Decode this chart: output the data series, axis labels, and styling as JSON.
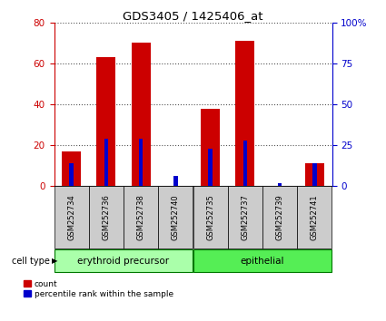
{
  "title": "GDS3405 / 1425406_at",
  "samples": [
    "GSM252734",
    "GSM252736",
    "GSM252738",
    "GSM252740",
    "GSM252735",
    "GSM252737",
    "GSM252739",
    "GSM252741"
  ],
  "count_values": [
    17,
    63,
    70,
    0,
    38,
    71,
    0,
    11
  ],
  "percentile_values": [
    14,
    29,
    29,
    6,
    23,
    28,
    2,
    14
  ],
  "group1_label": "erythroid precursor",
  "group2_label": "epithelial",
  "group1_indices": [
    0,
    1,
    2,
    3
  ],
  "group2_indices": [
    4,
    5,
    6,
    7
  ],
  "group_label_prefix": "cell type",
  "left_axis_color": "#cc0000",
  "right_axis_color": "#0000cc",
  "bar_color_count": "#cc0000",
  "bar_color_pct": "#0000cc",
  "left_ylim": [
    0,
    80
  ],
  "right_ylim": [
    0,
    100
  ],
  "left_yticks": [
    0,
    20,
    40,
    60,
    80
  ],
  "right_yticks": [
    0,
    25,
    50,
    75,
    100
  ],
  "right_yticklabels": [
    "0",
    "25",
    "50",
    "75",
    "100%"
  ],
  "group1_color": "#aaffaa",
  "group2_color": "#55ee55",
  "tick_label_bg": "#cccccc",
  "grid_color": "#555555",
  "fig_width": 4.25,
  "fig_height": 3.54,
  "dpi": 100
}
